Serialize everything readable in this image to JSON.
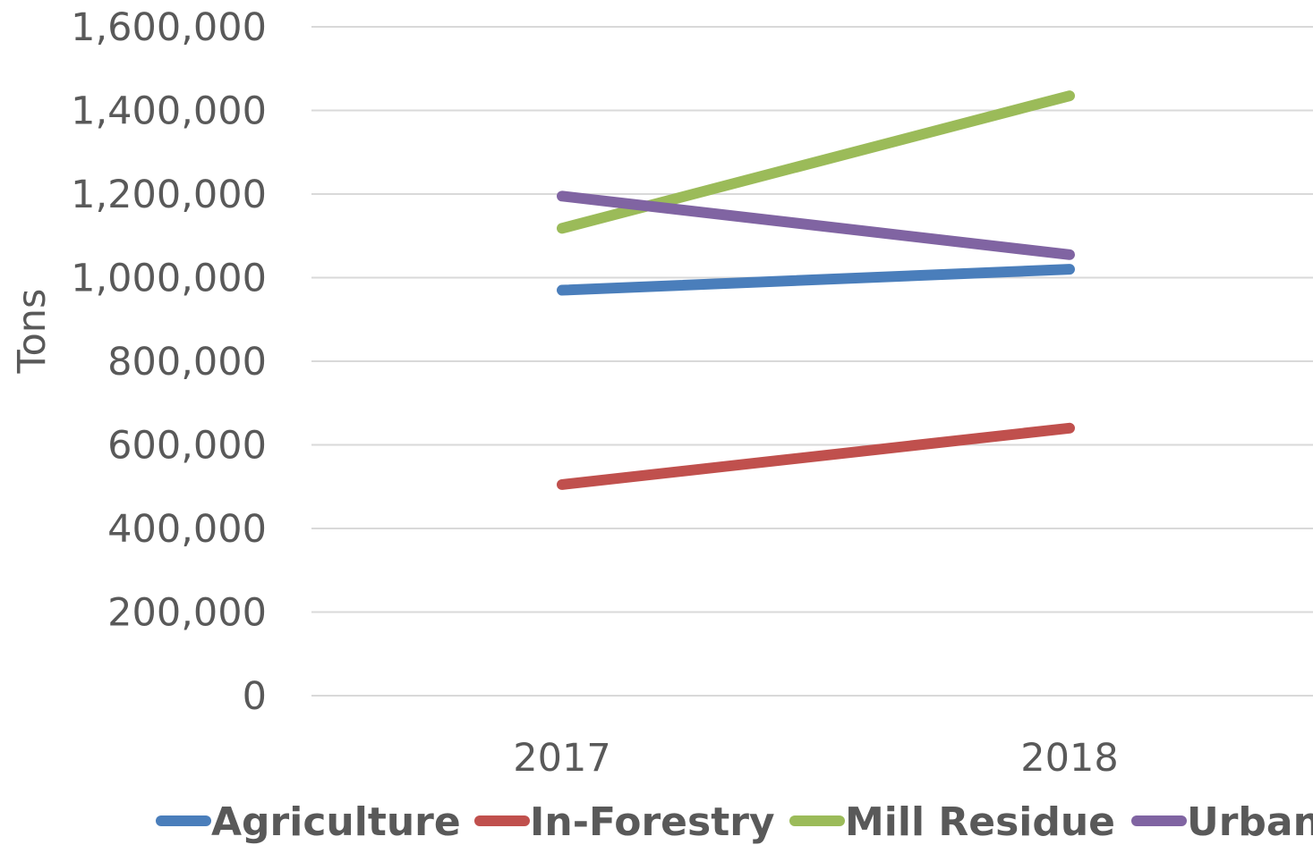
{
  "chart_data": {
    "type": "line",
    "title": "",
    "xlabel": "",
    "ylabel": "Tons",
    "categories": [
      "2017",
      "2018"
    ],
    "ylim": [
      0,
      1600000
    ],
    "yticks": [
      "0",
      "200,000",
      "400,000",
      "600,000",
      "800,000",
      "1,000,000",
      "1,200,000",
      "1,400,000",
      "1,600,000"
    ],
    "ytick_values": [
      0,
      200000,
      400000,
      600000,
      800000,
      1000000,
      1200000,
      1400000,
      1600000
    ],
    "grid": true,
    "legend_position": "bottom",
    "series": [
      {
        "name": "Agriculture",
        "color": "#4a7ebb",
        "values": [
          970000,
          1020000
        ]
      },
      {
        "name": "In-Forestry",
        "color": "#c0504d",
        "values": [
          505000,
          640000
        ]
      },
      {
        "name": "Mill Residue",
        "color": "#9bbb59",
        "values": [
          1118000,
          1435000
        ]
      },
      {
        "name": "Urban",
        "color": "#8064a2",
        "values": [
          1195000,
          1055000
        ]
      }
    ]
  }
}
